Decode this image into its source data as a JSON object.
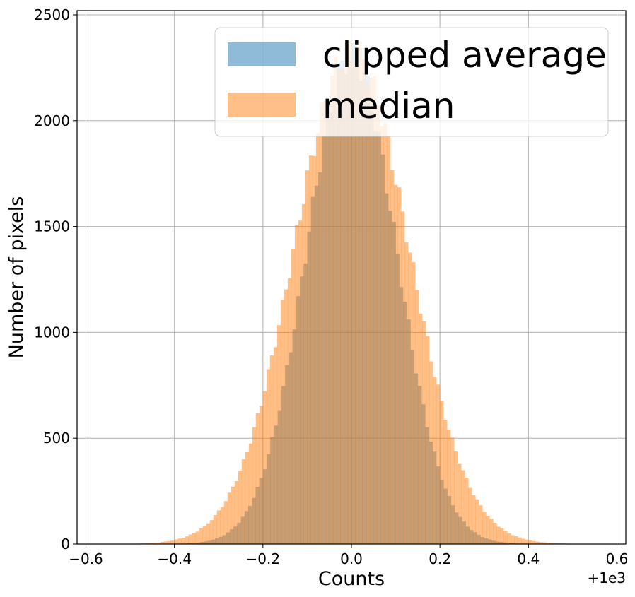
{
  "chart_data": {
    "type": "histogram",
    "xlabel": "Counts",
    "ylabel": "Number of pixels",
    "x_offset_label": "+1e3",
    "xlim": [
      -0.62,
      0.62
    ],
    "ylim": [
      0,
      2520
    ],
    "xticks": [
      -0.6,
      -0.4,
      -0.2,
      0.0,
      0.2,
      0.4,
      0.6
    ],
    "xtick_labels": [
      "−0.6",
      "−0.4",
      "−0.2",
      "0.0",
      "0.2",
      "0.4",
      "0.6"
    ],
    "yticks": [
      0,
      500,
      1000,
      1500,
      2000,
      2500
    ],
    "ytick_labels": [
      "0",
      "500",
      "1000",
      "1500",
      "2000",
      "2500"
    ],
    "grid": true,
    "legend_position": "top-right",
    "series": [
      {
        "name": "clipped average",
        "color": "#1f77b4",
        "alpha": 0.5,
        "bins": {
          "start": -0.5,
          "stop": 0.5,
          "count": 120
        },
        "peak": 2300,
        "sigma": 0.102
      },
      {
        "name": "median",
        "color": "#ff7f0e",
        "alpha": 0.5,
        "bins": {
          "start": -0.6,
          "stop": 0.6,
          "count": 150
        },
        "peak": 2330,
        "sigma": 0.129
      }
    ]
  }
}
